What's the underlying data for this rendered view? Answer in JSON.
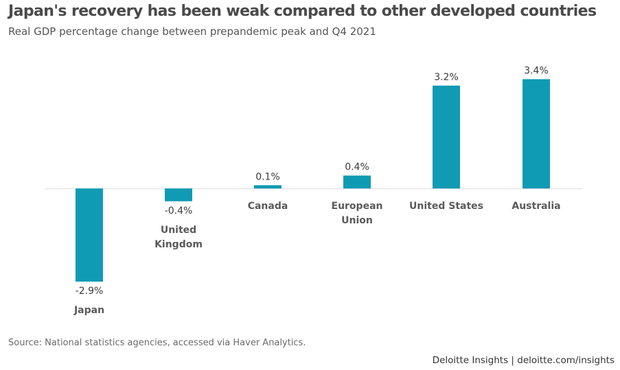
{
  "header": {
    "title": "Japan's recovery has been weak compared to other developed countries",
    "subtitle": "Real GDP percentage change between prepandemic peak and Q4 2021"
  },
  "footer": {
    "source": "Source: National statistics agencies, accessed via Haver Analytics.",
    "branding": "Deloitte Insights | deloitte.com/insights"
  },
  "colors": {
    "bar": "#0f9bb3",
    "baseline": "#dddddd"
  },
  "chart_data": {
    "type": "bar",
    "title": "Japan's recovery has been weak compared to other developed countries",
    "subtitle": "Real GDP percentage change between prepandemic peak and Q4 2021",
    "xlabel": "",
    "ylabel": "",
    "ylim": [
      -2.9,
      3.4
    ],
    "grid": false,
    "legend": "none",
    "categories": [
      [
        "Japan"
      ],
      [
        "United",
        "Kingdom"
      ],
      [
        "Canada"
      ],
      [
        "European",
        "Union"
      ],
      [
        "United States"
      ],
      [
        "Australia"
      ]
    ],
    "values": [
      -2.9,
      -0.4,
      0.1,
      0.4,
      3.2,
      3.4
    ],
    "value_labels": [
      "-2.9%",
      "-0.4%",
      "0.1%",
      "0.4%",
      "3.2%",
      "3.4%"
    ]
  }
}
